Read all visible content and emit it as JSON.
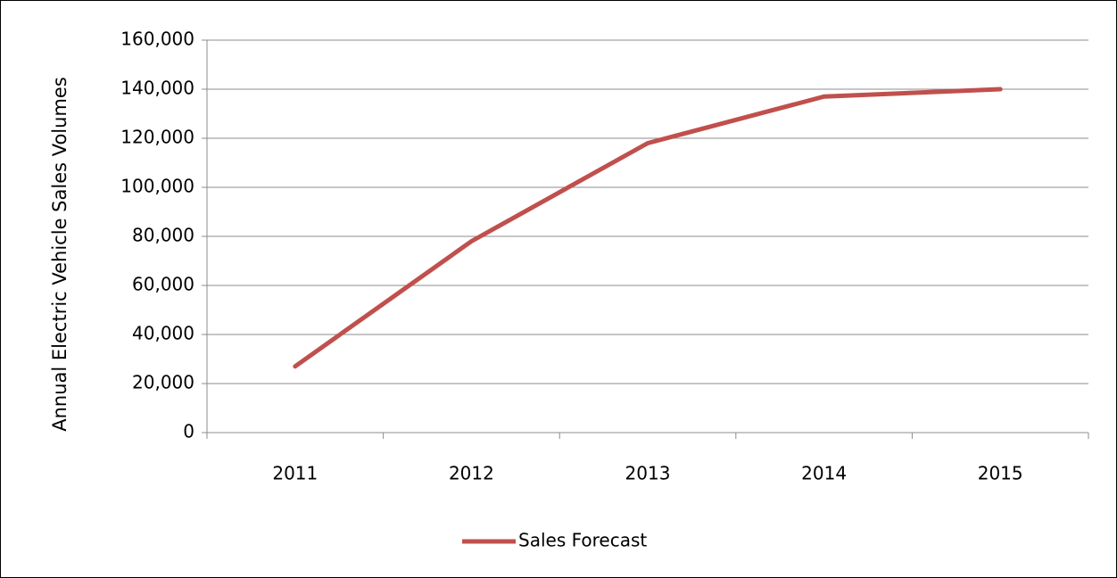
{
  "chart_data": {
    "type": "line",
    "y_label": "Annual Electric Vehicle Sales Volumes",
    "categories": [
      "2011",
      "2012",
      "2013",
      "2014",
      "2015"
    ],
    "series": [
      {
        "name": "Sales Forecast",
        "color": "#c0504d",
        "values": [
          27000,
          78000,
          118000,
          137000,
          140000
        ]
      }
    ],
    "ylim": [
      0,
      160000
    ],
    "yticks": [
      0,
      {
        "value": 20000,
        "label": "20,000"
      },
      {
        "value": 40000,
        "label": "40,000"
      },
      {
        "value": 60000,
        "label": "60,000"
      },
      {
        "value": 80000,
        "label": "80,000"
      },
      {
        "value": 100000,
        "label": "100,000"
      },
      {
        "value": 120000,
        "label": "120,000"
      },
      {
        "value": 140000,
        "label": "140,000"
      },
      {
        "value": 160000,
        "label": "160,000"
      }
    ],
    "grid": true,
    "legend": "bottom"
  }
}
